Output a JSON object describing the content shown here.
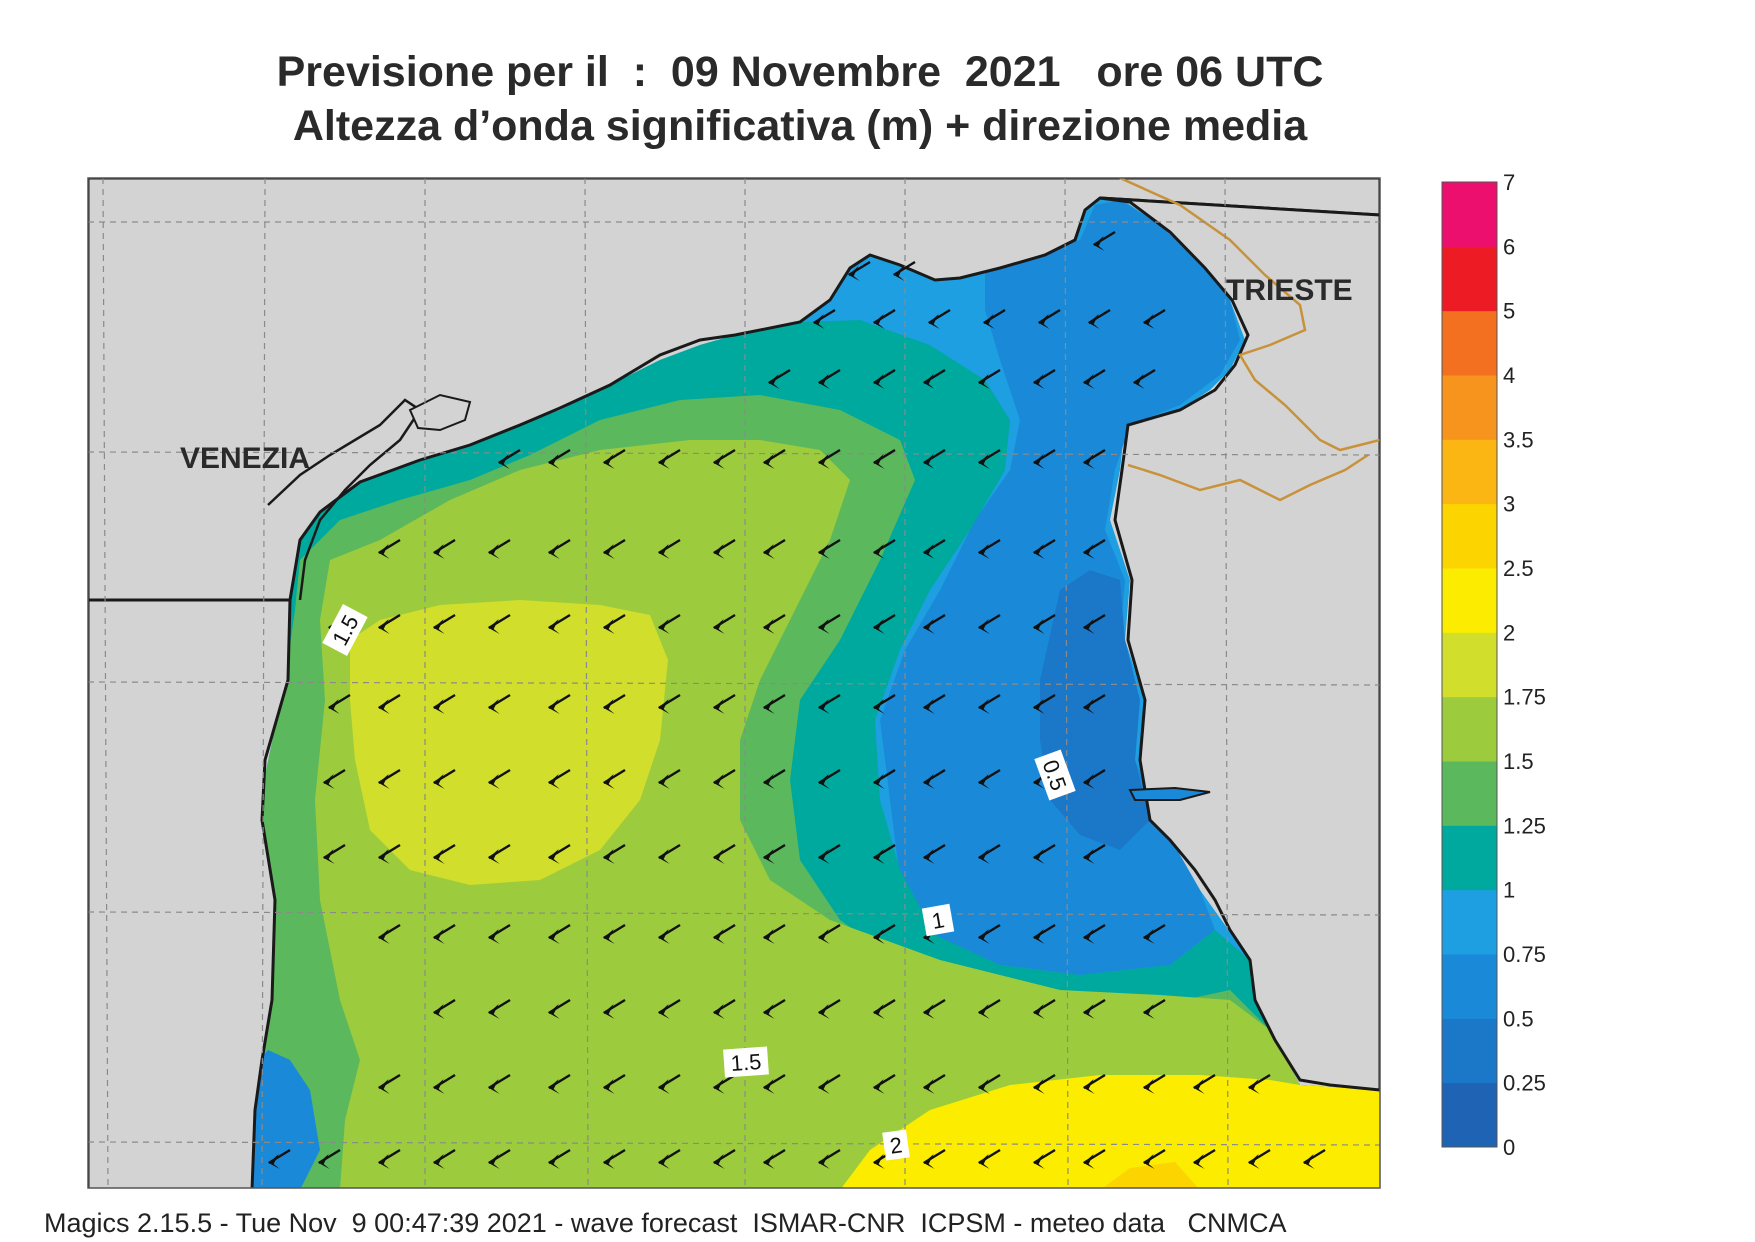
{
  "title": {
    "line1": "Previsione per il  :  09 Novembre  2021   ore 06 UTC",
    "line2": "Altezza d’onda significativa (m) + direzione media"
  },
  "places": {
    "venezia": "VENEZIA",
    "trieste": "TRIESTE"
  },
  "contour_labels": [
    "1.5",
    "0.5",
    "1",
    "1.5",
    "2"
  ],
  "legend": {
    "levels": [
      "0",
      "0.25",
      "0.5",
      "0.75",
      "1",
      "1.25",
      "1.5",
      "1.75",
      "2",
      "2.5",
      "3",
      "3.5",
      "4",
      "5",
      "6",
      "7"
    ],
    "colors": [
      "#1e63b4",
      "#1b78c9",
      "#1a8ad8",
      "#1e9fe2",
      "#00a99d",
      "#5cb85c",
      "#9ccc3d",
      "#d1de2b",
      "#fbec00",
      "#fcd500",
      "#fbb614",
      "#f7941d",
      "#f37021",
      "#ed1c24",
      "#ec0f6e"
    ]
  },
  "colors": {
    "land": "#d3d3d4",
    "coast": "#1a1a1a",
    "border": "#c8923a",
    "grid": "#8a8a8a"
  },
  "arrow_direction": "south-west",
  "footer": "Magics 2.15.5 - Tue Nov  9 00:47:39 2021 - wave forecast  ISMAR-CNR  ICPSM - meteo data   CNMCA"
}
